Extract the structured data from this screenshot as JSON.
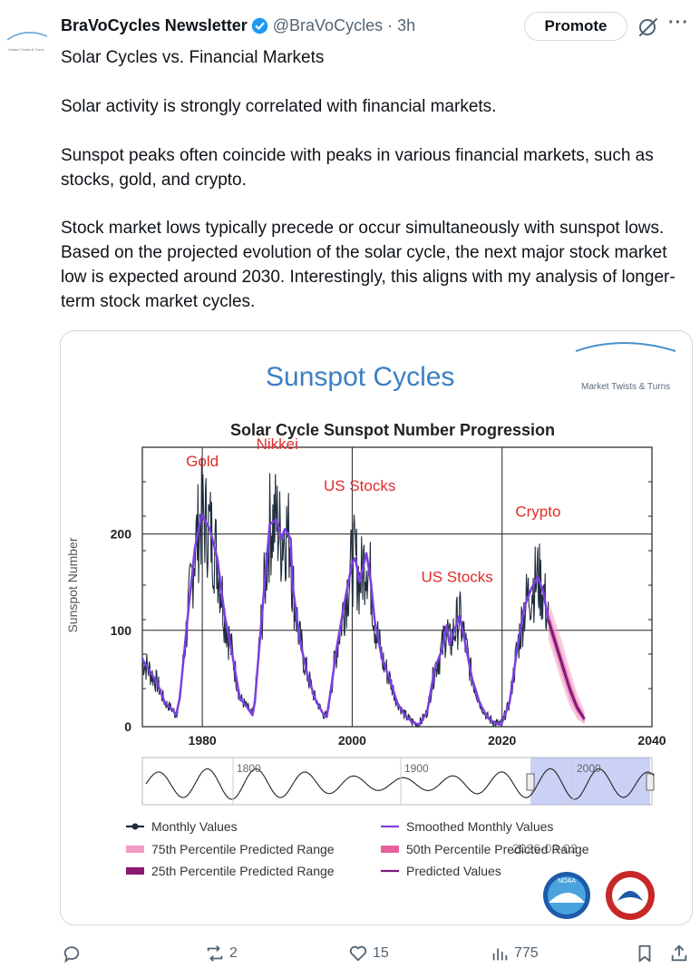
{
  "post": {
    "author": "BraVoCycles Newsletter",
    "handle": "@BraVoCycles · 3h",
    "promote_label": "Promote",
    "avatar_text": "Market Twists & Turns",
    "paragraphs": [
      "Solar Cycles vs. Financial Markets",
      "Solar activity is strongly correlated with financial markets.",
      "Sunspot peaks often coincide with peaks in various financial markets, such as stocks, gold, and crypto.",
      "Stock market lows typically precede or occur simultaneously with sunspot lows. Based on the projected evolution of the solar cycle, the next major stock market low is expected around 2030. Interestingly, this aligns with my analysis of longer-term stock market cycles."
    ]
  },
  "image": {
    "header_title": "Sunspot Cycles",
    "logo_text": "Market Twists & Turns",
    "date_stamp": "2026-03-02",
    "annotation_color": "#e32b2b"
  },
  "chart_data": {
    "type": "line",
    "title": "Solar Cycle Sunspot Number Progression",
    "ylabel": "Sunspot Number",
    "xlabel": "",
    "xlim": [
      1972,
      2040
    ],
    "ylim": [
      0,
      290
    ],
    "x_ticks": [
      "1980",
      "2000",
      "2020",
      "2040"
    ],
    "y_ticks": [
      "0",
      "100",
      "200"
    ],
    "grid": true,
    "annotations": [
      {
        "text": "Gold",
        "x": 1980,
        "y": 270
      },
      {
        "text": "Nikkei",
        "x": 1990,
        "y": 288
      },
      {
        "text": "US Stocks",
        "x": 2001,
        "y": 245
      },
      {
        "text": "US Stocks",
        "x": 2014,
        "y": 150
      },
      {
        "text": "Crypto",
        "x": 2024.8,
        "y": 218
      }
    ],
    "series": [
      {
        "name": "Smoothed Monthly Values",
        "color": "#7b3fe4",
        "x": [
          1972,
          1974,
          1975,
          1976,
          1976.5,
          1977,
          1978,
          1979,
          1979.9,
          1981,
          1982,
          1983,
          1984,
          1985,
          1986,
          1986.7,
          1987,
          1988,
          1989,
          1989.9,
          1990.5,
          1991,
          1991.8,
          1992,
          1993,
          1994,
          1995,
          1996,
          1996.6,
          1997,
          1998,
          1999,
          2000,
          2000.4,
          2001,
          2001.9,
          2002.5,
          2003,
          2004,
          2005,
          2006,
          2007,
          2008,
          2008.9,
          2010,
          2011,
          2012,
          2012.6,
          2013,
          2014.3,
          2015,
          2016,
          2017,
          2018,
          2019,
          2019.9,
          2021,
          2022,
          2023,
          2024,
          2024.8,
          2025.5,
          2026.2
        ],
        "values": [
          70,
          45,
          25,
          18,
          12,
          30,
          110,
          185,
          220,
          205,
          175,
          115,
          75,
          30,
          20,
          12,
          25,
          120,
          210,
          215,
          195,
          205,
          195,
          150,
          90,
          55,
          30,
          15,
          10,
          30,
          85,
          130,
          170,
          175,
          150,
          180,
          150,
          110,
          70,
          50,
          25,
          12,
          5,
          2,
          15,
          60,
          80,
          105,
          85,
          115,
          90,
          50,
          25,
          10,
          4,
          2,
          25,
          80,
          125,
          145,
          155,
          140,
          110
        ]
      },
      {
        "name": "Predicted Values",
        "color": "#7a1a7a",
        "x": [
          2026.2,
          2027,
          2028,
          2029,
          2030,
          2031
        ],
        "values": [
          110,
          90,
          65,
          40,
          20,
          8
        ]
      }
    ],
    "predicted_ranges": [
      {
        "name": "75th Percentile Predicted Range",
        "color": "#f29bc2",
        "x": [
          2026.2,
          2027,
          2028,
          2029,
          2030,
          2031
        ],
        "low": [
          90,
          70,
          45,
          22,
          8,
          2
        ],
        "high": [
          130,
          112,
          88,
          60,
          35,
          16
        ]
      },
      {
        "name": "50th Percentile Predicted Range",
        "color": "#e85f9e",
        "x": [
          2026.2,
          2027,
          2028,
          2029,
          2030,
          2031
        ],
        "low": [
          100,
          80,
          55,
          30,
          14,
          4
        ],
        "high": [
          120,
          100,
          75,
          50,
          27,
          12
        ]
      },
      {
        "name": "25th Percentile Predicted Range",
        "color": "#8a1870",
        "x": [
          2026.2,
          2027,
          2028,
          2029,
          2030,
          2031
        ],
        "low": [
          105,
          85,
          60,
          36,
          17,
          6
        ],
        "high": [
          115,
          95,
          70,
          44,
          23,
          10
        ]
      }
    ],
    "navigator": {
      "tick_labels": [
        "1800",
        "1900",
        "2000"
      ],
      "selected_range": [
        1972,
        2040
      ]
    },
    "legend": {
      "placement": "bottom",
      "items": [
        {
          "label": "Monthly Values",
          "color": "#1f2d3d",
          "shape": "line-marker"
        },
        {
          "label": "Smoothed Monthly Values",
          "color": "#7b3fe4",
          "shape": "line"
        },
        {
          "label": "75th Percentile Predicted Range",
          "color": "#f29bc2",
          "shape": "bar"
        },
        {
          "label": "50th Percentile Predicted Range",
          "color": "#e85f9e",
          "shape": "bar"
        },
        {
          "label": "25th Percentile Predicted Range",
          "color": "#8a1870",
          "shape": "bar"
        },
        {
          "label": "Predicted Values",
          "color": "#7a1a7a",
          "shape": "line"
        }
      ]
    }
  },
  "actions": {
    "reply_count": "",
    "repost_count": "2",
    "like_count": "15",
    "views_count": "775"
  }
}
